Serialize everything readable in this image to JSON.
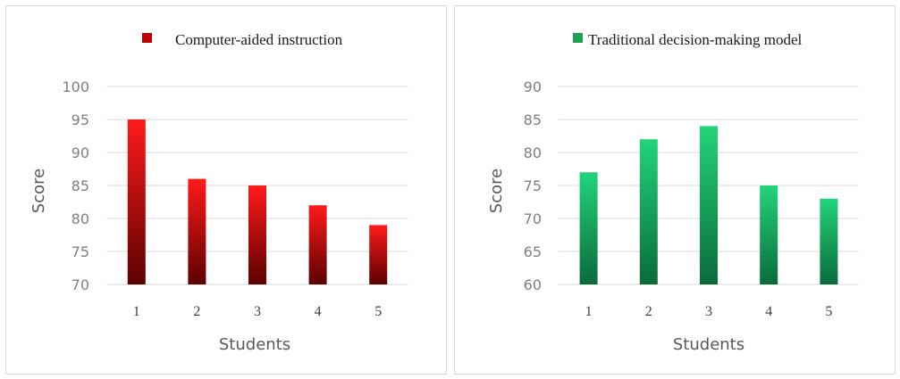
{
  "chart_data": [
    {
      "type": "bar",
      "legend": "Computer-aided instruction",
      "legend_position": "top",
      "xlabel": "Students",
      "ylabel": "Score",
      "categories": [
        "1",
        "2",
        "3",
        "4",
        "5"
      ],
      "values": [
        95,
        86,
        85,
        82,
        79
      ],
      "ylim": [
        70,
        100
      ],
      "yticks": [
        70,
        75,
        80,
        85,
        90,
        95,
        100
      ],
      "grid": true,
      "colors": {
        "top": "#ff1a1a",
        "bottom": "#5c0000",
        "legend": "#c00000"
      }
    },
    {
      "type": "bar",
      "legend": "Traditional decision-making model",
      "legend_position": "top",
      "xlabel": "Students",
      "ylabel": "Score",
      "categories": [
        "1",
        "2",
        "3",
        "4",
        "5"
      ],
      "values": [
        77,
        82,
        84,
        75,
        73
      ],
      "ylim": [
        60,
        90
      ],
      "yticks": [
        60,
        65,
        70,
        75,
        80,
        85,
        90
      ],
      "grid": true,
      "colors": {
        "top": "#22d47a",
        "bottom": "#0a6b3a",
        "legend": "#1aa355"
      }
    }
  ]
}
